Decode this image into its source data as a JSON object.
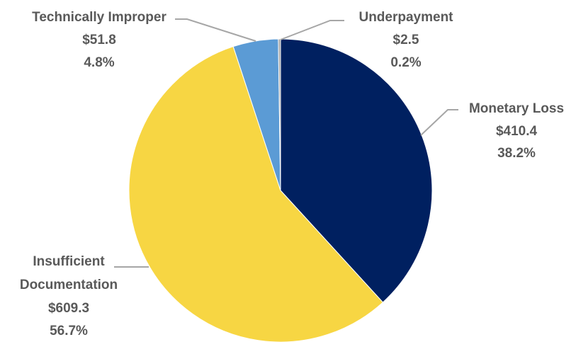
{
  "chart_data": {
    "type": "pie",
    "slices": [
      {
        "label": "Monetary Loss",
        "value_text": "$410.4",
        "percent_text": "38.2%",
        "value": 410.4,
        "percent": 38.2,
        "color": "#002060"
      },
      {
        "label": "Insufficient Documentation",
        "label_lines": [
          "Insufficient",
          "Documentation"
        ],
        "value_text": "$609.3",
        "percent_text": "56.7%",
        "value": 609.3,
        "percent": 56.7,
        "color": "#F7D643"
      },
      {
        "label": "Technically Improper",
        "value_text": "$51.8",
        "percent_text": "4.8%",
        "value": 51.8,
        "percent": 4.8,
        "color": "#5B9BD5"
      },
      {
        "label": "Underpayment",
        "value_text": "$2.5",
        "percent_text": "0.2%",
        "value": 2.5,
        "percent": 0.2,
        "color": "#A5A5A5"
      }
    ],
    "legend": "none",
    "title": ""
  }
}
